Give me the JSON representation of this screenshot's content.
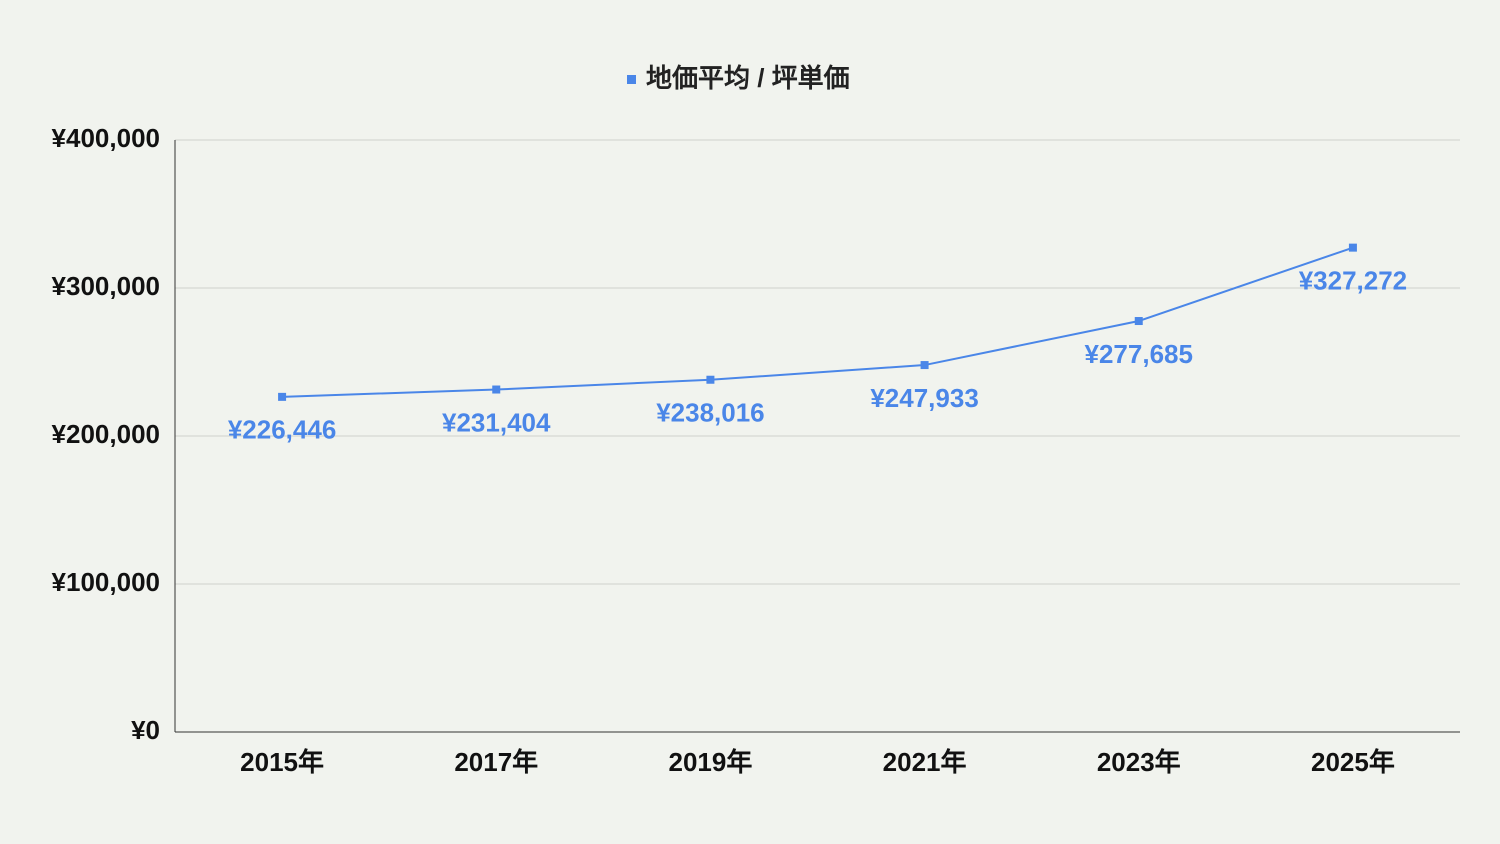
{
  "chart_data": {
    "type": "line",
    "categories": [
      "2015年",
      "2017年",
      "2019年",
      "2021年",
      "2023年",
      "2025年"
    ],
    "series": [
      {
        "name": "地価平均 / 坪単価",
        "color": "#4a86e8",
        "values": [
          226446,
          231404,
          238016,
          247933,
          277685,
          327272
        ],
        "value_labels": [
          "¥226,446",
          "¥231,404",
          "¥238,016",
          "¥247,933",
          "¥277,685",
          "¥327,272"
        ]
      }
    ],
    "ylim": [
      0,
      400000
    ],
    "yticks": [
      {
        "value": 0,
        "label": "¥0"
      },
      {
        "value": 100000,
        "label": "¥100,000"
      },
      {
        "value": 200000,
        "label": "¥200,000"
      },
      {
        "value": 300000,
        "label": "¥300,000"
      },
      {
        "value": 400000,
        "label": "¥400,000"
      }
    ],
    "grid": true,
    "legend": "top"
  }
}
